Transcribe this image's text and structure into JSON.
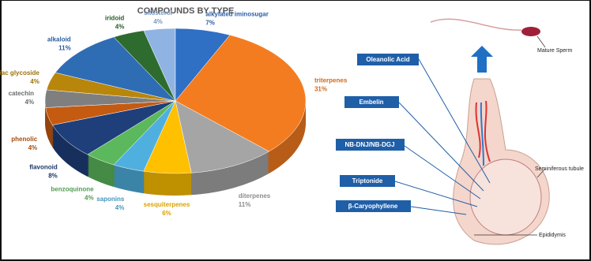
{
  "chart_data": {
    "type": "pie",
    "title": "COMPOUNDS BY TYPE",
    "categories": [
      "sitosterol",
      "alkylated iminosugar",
      "triterpenes",
      "diterpenes",
      "sesquiterpenes",
      "saponins",
      "benzoquinone",
      "flavonoid",
      "phenolic",
      "catechin",
      "cardiac glycoside",
      "alkaloid",
      "iridoid"
    ],
    "values": [
      4,
      7,
      31,
      11,
      6,
      4,
      4,
      8,
      4,
      4,
      4,
      11,
      4
    ],
    "value_labels": [
      "4%",
      "7%",
      "31%",
      "11%",
      "6%",
      "4%",
      "4%",
      "8%",
      "4%",
      "4%",
      "4%",
      "11%",
      "4%"
    ],
    "colors": [
      "#8fb4e3",
      "#2f6fc4",
      "#f47c20",
      "#a5a5a5",
      "#ffc000",
      "#4fb0e0",
      "#5cb85c",
      "#1f3f7a",
      "#c55a11",
      "#7f7f7f",
      "#b8860b",
      "#2e6db4",
      "#2e6b2e"
    ]
  },
  "diagram": {
    "compounds": [
      "Oleanolic Acid",
      "Embelin",
      "NB-DNJ/NB-DGJ",
      "Triptonide",
      "β-Caryophyllene"
    ],
    "mature_sperm": "Mature Sperm",
    "tubule": "Seminiferous tubule",
    "epididymis": "Epididymis"
  }
}
